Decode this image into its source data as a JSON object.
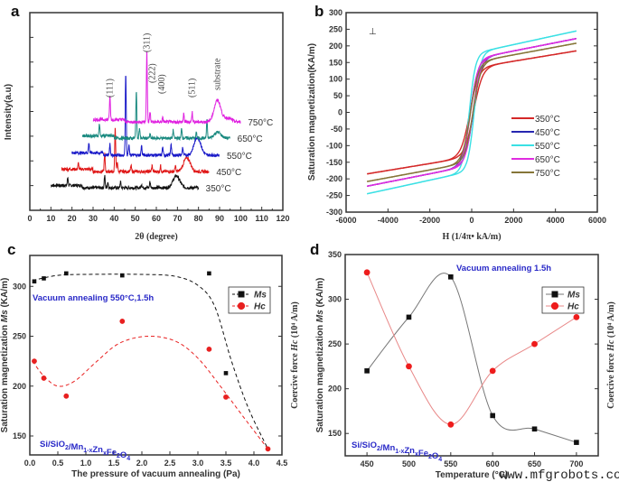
{
  "watermark": "www.mfgrobots.com",
  "chart_data": [
    {
      "panel": "a",
      "type": "line",
      "xlabel": "2θ (degree)",
      "ylabel": "Intensity(a.u)",
      "xlim": [
        0,
        120
      ],
      "ylim": [
        0,
        100
      ],
      "xticks": [
        0,
        10,
        20,
        30,
        40,
        50,
        60,
        70,
        80,
        90,
        100,
        110,
        120
      ],
      "series": [
        {
          "name": "350°C",
          "color": "#111111",
          "x_range": [
            10,
            80
          ],
          "baseline": 11.4,
          "peaks": [
            [
              18,
              4
            ],
            [
              35.5,
              6
            ],
            [
              37,
              3
            ],
            [
              43,
              3
            ],
            [
              53,
              2
            ],
            [
              57,
              3
            ],
            [
              69.5,
              6
            ]
          ]
        },
        {
          "name": "450°C",
          "color": "#e01818",
          "x_range": [
            15,
            85
          ],
          "baseline": 19.6,
          "peaks": [
            [
              23,
              3
            ],
            [
              35.5,
              9
            ],
            [
              40.5,
              23
            ],
            [
              41.5,
              5
            ],
            [
              48,
              3
            ],
            [
              58,
              3
            ],
            [
              62,
              3
            ],
            [
              69,
              3
            ],
            [
              74.5,
              7
            ]
          ]
        },
        {
          "name": "550°C",
          "color": "#1818c8",
          "x_range": [
            20,
            90
          ],
          "baseline": 27.9,
          "peaks": [
            [
              28,
              5
            ],
            [
              38,
              6
            ],
            [
              45.5,
              42
            ],
            [
              47,
              5
            ],
            [
              53,
              5
            ],
            [
              63,
              4
            ],
            [
              67,
              6
            ],
            [
              72.5,
              4
            ],
            [
              79.5,
              9
            ]
          ]
        },
        {
          "name": "650°C",
          "color": "#1a8a80",
          "x_range": [
            25,
            95
          ],
          "baseline": 36.5,
          "peaks": [
            [
              33,
              6
            ],
            [
              50.5,
              24
            ],
            [
              52,
              5
            ],
            [
              57,
              2
            ],
            [
              68,
              4
            ],
            [
              72,
              5
            ],
            [
              79,
              3
            ],
            [
              84,
              9
            ],
            [
              89,
              3
            ]
          ]
        },
        {
          "name": "750°C",
          "color": "#e020e0",
          "x_range": [
            30,
            100
          ],
          "baseline": 44.7,
          "peaks": [
            [
              38,
              12
            ],
            [
              45.5,
              0
            ],
            [
              55.5,
              36
            ],
            [
              57,
              5
            ],
            [
              63,
              2
            ],
            [
              73,
              4
            ],
            [
              77,
              5
            ],
            [
              89,
              11
            ],
            [
              94,
              2
            ]
          ]
        }
      ],
      "annotations": [
        {
          "text": "(111)",
          "x": 38
        },
        {
          "text": "(311)",
          "x": 55.5
        },
        {
          "text": "(222)",
          "x": 58
        },
        {
          "text": "(400)",
          "x": 62.5
        },
        {
          "text": "(511)",
          "x": 77
        },
        {
          "text": "substrate",
          "x": 89
        }
      ]
    },
    {
      "panel": "b",
      "type": "line",
      "xlabel": "H (1/4π• kA/m)",
      "ylabel": "Saturation magnetization(KA/m)",
      "xlim": [
        -6000,
        6000
      ],
      "ylim": [
        -300,
        300
      ],
      "xticks": [
        -6000,
        -4000,
        -2000,
        0,
        2000,
        4000,
        6000
      ],
      "yticks": [
        -300,
        -250,
        -200,
        -150,
        -100,
        -50,
        0,
        50,
        100,
        150,
        200,
        250,
        300
      ],
      "orientation_mark": "⊥",
      "legend": "right",
      "series": [
        {
          "name": "350°C",
          "color": "#d42828",
          "m_at_max_field": 185,
          "max_field": 5000
        },
        {
          "name": "450°C",
          "color": "#2626b0",
          "m_at_max_field": 222,
          "max_field": 5000
        },
        {
          "name": "550°C",
          "color": "#3ae0e4",
          "m_at_max_field": 245,
          "max_field": 5000
        },
        {
          "name": "650°C",
          "color": "#e02ce0",
          "m_at_max_field": 222,
          "max_field": 5000
        },
        {
          "name": "750°C",
          "color": "#857538",
          "m_at_max_field": 208,
          "max_field": 5000
        }
      ]
    },
    {
      "panel": "c",
      "type": "scatter",
      "xlabel": "The pressure of vacuum annealing (Pa)",
      "ylabel_pre": "Saturation magnetization ",
      "ylabel_em": "Ms",
      "ylabel_post": " (KA/m)",
      "y2label_pre": "Coercive force ",
      "y2label_em": "Hc",
      "y2label_post": " (10⁴ A/m)",
      "xlim": [
        0,
        4.5
      ],
      "ylim": [
        131,
        331
      ],
      "xticks": [
        0.0,
        0.5,
        1.0,
        1.5,
        2.0,
        2.5,
        3.0,
        3.5,
        4.0,
        4.5
      ],
      "yticks": [
        150,
        200,
        250,
        300
      ],
      "note": "Vacuum annealing 550°C,1.5h",
      "formula": [
        {
          "t": "Si/SiO",
          "s": false
        },
        {
          "t": "2",
          "s": true
        },
        {
          "t": "/Mn",
          "s": false
        },
        {
          "t": "1-x",
          "s": true
        },
        {
          "t": "Zn",
          "s": false
        },
        {
          "t": "x",
          "s": true
        },
        {
          "t": "Fe",
          "s": false
        },
        {
          "t": "2",
          "s": true
        },
        {
          "t": "O",
          "s": false
        },
        {
          "t": "4",
          "s": true
        }
      ],
      "legend": "top-right",
      "series": [
        {
          "name": "Ms",
          "color": "#111111",
          "marker": "square",
          "points": [
            [
              0.08,
              305
            ],
            [
              0.25,
              308
            ],
            [
              0.65,
              313
            ],
            [
              1.65,
              311
            ],
            [
              3.2,
              313
            ],
            [
              3.5,
              213
            ]
          ],
          "fit": [
            [
              0.05,
              306
            ],
            [
              0.5,
              311
            ],
            [
              1.0,
              312
            ],
            [
              2.0,
              312
            ],
            [
              2.6,
              310
            ],
            [
              3.0,
              301
            ],
            [
              3.3,
              280
            ],
            [
              3.6,
              225
            ],
            [
              3.9,
              178
            ],
            [
              4.25,
              137
            ]
          ]
        },
        {
          "name": "Hc",
          "color": "#e82020",
          "marker": "circle",
          "points": [
            [
              0.08,
              225
            ],
            [
              0.25,
              208
            ],
            [
              0.65,
              190
            ],
            [
              1.65,
              265
            ],
            [
              3.2,
              237
            ],
            [
              3.5,
              189
            ],
            [
              4.25,
              137
            ]
          ],
          "fit": [
            [
              0.05,
              225
            ],
            [
              0.25,
              210
            ],
            [
              0.5,
              200
            ],
            [
              0.8,
              205
            ],
            [
              1.2,
              225
            ],
            [
              1.6,
              243
            ],
            [
              2.1,
              250
            ],
            [
              2.6,
              245
            ],
            [
              3.0,
              228
            ],
            [
              3.4,
              200
            ],
            [
              3.8,
              170
            ],
            [
              4.25,
              137
            ]
          ]
        }
      ]
    },
    {
      "panel": "d",
      "type": "line",
      "xlabel": "Temperature (°C)",
      "ylabel_pre": "Saturation magnetization ",
      "ylabel_em": "Ms",
      "ylabel_post": " (KA/m)",
      "y2label_pre": "Coercive force ",
      "y2label_em": "Hc",
      "y2label_post": " (10⁴ A/m)",
      "xlim": [
        424,
        726
      ],
      "ylim": [
        125,
        350
      ],
      "xticks": [
        450,
        500,
        550,
        600,
        650,
        700
      ],
      "yticks": [
        150,
        200,
        250,
        300,
        350
      ],
      "note": "Vacuum annealing 1.5h",
      "formula": [
        {
          "t": "Si/SiO",
          "s": false
        },
        {
          "t": "2",
          "s": true
        },
        {
          "t": "/Mn",
          "s": false
        },
        {
          "t": "1-x",
          "s": true
        },
        {
          "t": "Zn",
          "s": false
        },
        {
          "t": "x",
          "s": true
        },
        {
          "t": "Fe",
          "s": false
        },
        {
          "t": "2",
          "s": true
        },
        {
          "t": "O",
          "s": false
        },
        {
          "t": "4",
          "s": true
        }
      ],
      "legend": "top-right",
      "series": [
        {
          "name": "Ms",
          "color": "#111111",
          "line_color": "#777777",
          "marker": "square",
          "points": [
            [
              450,
              220
            ],
            [
              500,
              280
            ],
            [
              550,
              325
            ],
            [
              600,
              170
            ],
            [
              650,
              155
            ],
            [
              700,
              140
            ]
          ]
        },
        {
          "name": "Hc",
          "color": "#ee1c1c",
          "line_color": "#e88888",
          "marker": "circle",
          "points": [
            [
              450,
              330
            ],
            [
              500,
              225
            ],
            [
              550,
              160
            ],
            [
              600,
              220
            ],
            [
              650,
              250
            ],
            [
              700,
              280
            ]
          ]
        }
      ]
    }
  ]
}
